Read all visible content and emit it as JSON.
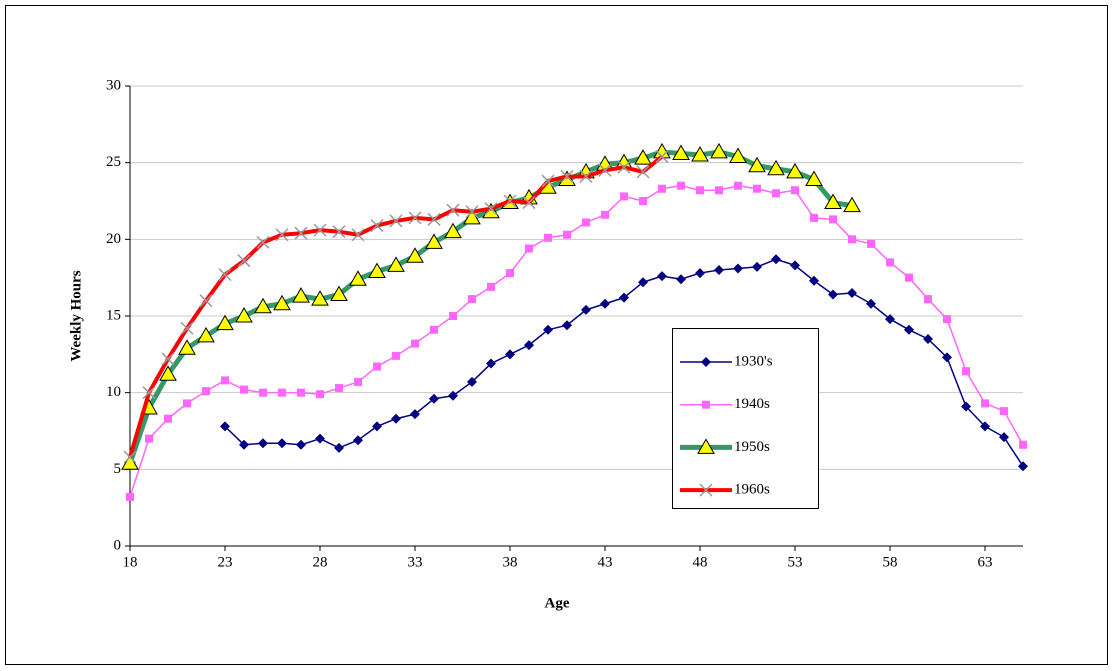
{
  "chart_data": {
    "type": "line",
    "x_label": "Age",
    "y_label": "Weekly Hours",
    "x": [
      18,
      19,
      20,
      21,
      22,
      23,
      24,
      25,
      26,
      27,
      28,
      29,
      30,
      31,
      32,
      33,
      34,
      35,
      36,
      37,
      38,
      39,
      40,
      41,
      42,
      43,
      44,
      45,
      46,
      47,
      48,
      49,
      50,
      51,
      52,
      53,
      54,
      55,
      56,
      57,
      58,
      59,
      60,
      61,
      62,
      63,
      64,
      65
    ],
    "xlim": [
      18,
      65
    ],
    "xticks": [
      18,
      23,
      28,
      33,
      38,
      43,
      48,
      53,
      58,
      63
    ],
    "ylim": [
      0,
      30
    ],
    "yticks": [
      0,
      5,
      10,
      15,
      20,
      25,
      30
    ],
    "grid": true,
    "series": [
      {
        "name": "1930's",
        "color": "#000080",
        "marker": "diamond",
        "marker_color": "#000080",
        "values": [
          null,
          null,
          null,
          null,
          null,
          7.8,
          6.6,
          6.7,
          6.7,
          6.6,
          7.0,
          6.4,
          6.9,
          7.8,
          8.3,
          8.6,
          9.6,
          9.8,
          10.7,
          11.9,
          12.5,
          13.1,
          14.1,
          14.4,
          15.4,
          15.8,
          16.2,
          17.2,
          17.6,
          17.4,
          17.8,
          18.0,
          18.1,
          18.2,
          18.7,
          18.3,
          17.3,
          16.4,
          16.5,
          15.8,
          14.8,
          14.1,
          13.5,
          12.3,
          9.1,
          7.8,
          7.1,
          5.2
        ]
      },
      {
        "name": "1940s",
        "color": "#ff66ff",
        "marker": "square",
        "marker_color": "#ff66ff",
        "values": [
          3.2,
          7.0,
          8.3,
          9.3,
          10.1,
          10.8,
          10.2,
          10.0,
          10.0,
          10.0,
          9.9,
          10.3,
          10.7,
          11.7,
          12.4,
          13.2,
          14.1,
          15.0,
          16.1,
          16.9,
          17.8,
          19.4,
          20.1,
          20.3,
          21.1,
          21.6,
          22.8,
          22.5,
          23.3,
          23.5,
          23.2,
          23.2,
          23.5,
          23.3,
          23.0,
          23.2,
          21.4,
          21.3,
          20.0,
          19.7,
          18.5,
          17.5,
          16.1,
          14.8,
          11.4,
          9.3,
          8.8,
          6.6
        ]
      },
      {
        "name": "1950s",
        "color": "#339966",
        "marker": "triangle",
        "marker_color": "#ffff00",
        "values": [
          5.4,
          9.0,
          11.2,
          12.9,
          13.7,
          14.5,
          15.0,
          15.6,
          15.8,
          16.3,
          16.1,
          16.4,
          17.4,
          17.9,
          18.3,
          18.9,
          19.8,
          20.5,
          21.4,
          21.8,
          22.4,
          22.7,
          23.4,
          23.9,
          24.4,
          24.9,
          25.0,
          25.3,
          25.7,
          25.6,
          25.5,
          25.7,
          25.4,
          24.8,
          24.6,
          24.4,
          23.9,
          22.4,
          22.2,
          null,
          null,
          null,
          null,
          null,
          null,
          null,
          null,
          null
        ]
      },
      {
        "name": "1960s",
        "color": "#ff0000",
        "marker": "x",
        "marker_color": "#999999",
        "values": [
          5.8,
          10.0,
          12.2,
          14.2,
          16.0,
          17.7,
          18.6,
          19.8,
          20.3,
          20.4,
          20.6,
          20.5,
          20.3,
          20.9,
          21.2,
          21.4,
          21.3,
          21.9,
          21.8,
          22.0,
          22.5,
          22.4,
          23.8,
          24.1,
          24.1,
          24.5,
          24.7,
          24.4,
          25.4,
          null,
          null,
          null,
          null,
          null,
          null,
          null,
          null,
          null,
          null,
          null,
          null,
          null,
          null,
          null,
          null,
          null,
          null,
          null
        ]
      }
    ]
  }
}
